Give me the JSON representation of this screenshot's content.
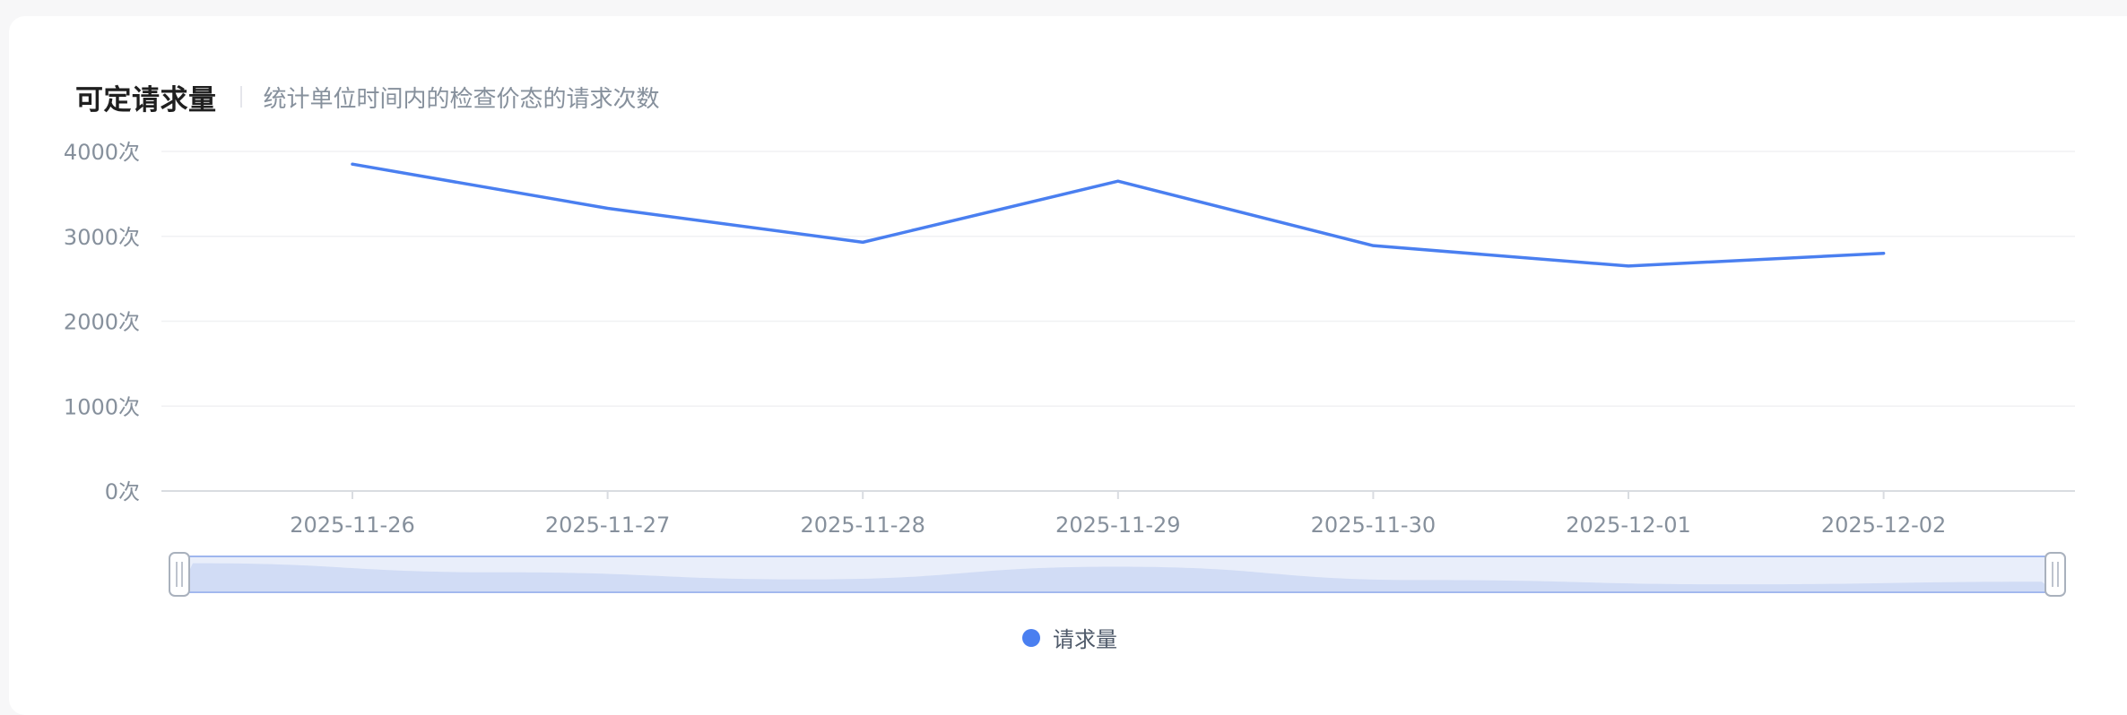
{
  "header": {
    "title": "可定请求量",
    "subtitle": "统计单位时间内的检查价态的请求次数"
  },
  "colors": {
    "series": "#4a7ff0",
    "grid": "#f0f1f3",
    "axis_text": "#86909c",
    "zoom_fill": "#dbe4f7",
    "zoom_shadow": "#b9c9f2",
    "zoom_border": "#9fb6ee"
  },
  "chart_data": {
    "type": "line",
    "title": "可定请求量",
    "subtitle": "统计单位时间内的检查价态的请求次数",
    "categories": [
      "2025-11-26",
      "2025-11-27",
      "2025-11-28",
      "2025-11-29",
      "2025-11-30",
      "2025-12-01",
      "2025-12-02"
    ],
    "series": [
      {
        "name": "请求量",
        "values": [
          3850,
          3330,
          2930,
          3650,
          2890,
          2650,
          2800
        ]
      }
    ],
    "y_ticks": [
      "0次",
      "1000次",
      "2000次",
      "3000次",
      "4000次"
    ],
    "y_tick_values": [
      0,
      1000,
      2000,
      3000,
      4000
    ],
    "ylim": [
      0,
      4000
    ],
    "xlabel": "",
    "ylabel": "",
    "grid": true,
    "legend_position": "bottom-center",
    "data_zoom": {
      "start_fraction": 0,
      "end_fraction": 1
    }
  }
}
